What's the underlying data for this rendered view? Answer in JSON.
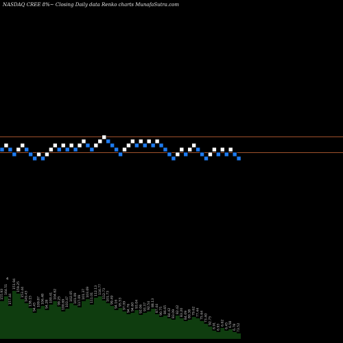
{
  "header": {
    "title": "NASDAQ CREE 8%~  Closing Daily data  Renko  charts MunafaSutra.com"
  },
  "chart_data": {
    "type": "renko",
    "colors": {
      "background": "#000000",
      "up_brick": "#ffffff",
      "down_brick": "#1e7bf0",
      "reference_line": "#a0522d",
      "volume_fill": "#0f3d0f",
      "volume_label": "#c8c8c8"
    },
    "reference_lines": [
      199.5,
      222.5
    ],
    "bricks": [
      {
        "dir": "down",
        "y": 218
      },
      {
        "dir": "up",
        "y": 212
      },
      {
        "dir": "down",
        "y": 218
      },
      {
        "dir": "down",
        "y": 225
      },
      {
        "dir": "up",
        "y": 218
      },
      {
        "dir": "up",
        "y": 212
      },
      {
        "dir": "down",
        "y": 218
      },
      {
        "dir": "down",
        "y": 225
      },
      {
        "dir": "down",
        "y": 231
      },
      {
        "dir": "up",
        "y": 225
      },
      {
        "dir": "down",
        "y": 231
      },
      {
        "dir": "up",
        "y": 225
      },
      {
        "dir": "up",
        "y": 218
      },
      {
        "dir": "up",
        "y": 212
      },
      {
        "dir": "down",
        "y": 218
      },
      {
        "dir": "up",
        "y": 212
      },
      {
        "dir": "down",
        "y": 218
      },
      {
        "dir": "up",
        "y": 212
      },
      {
        "dir": "down",
        "y": 218
      },
      {
        "dir": "up",
        "y": 212
      },
      {
        "dir": "up",
        "y": 206
      },
      {
        "dir": "down",
        "y": 212
      },
      {
        "dir": "down",
        "y": 218
      },
      {
        "dir": "up",
        "y": 212
      },
      {
        "dir": "up",
        "y": 206
      },
      {
        "dir": "up",
        "y": 200
      },
      {
        "dir": "down",
        "y": 206
      },
      {
        "dir": "down",
        "y": 212
      },
      {
        "dir": "down",
        "y": 218
      },
      {
        "dir": "down",
        "y": 225
      },
      {
        "dir": "up",
        "y": 218
      },
      {
        "dir": "up",
        "y": 212
      },
      {
        "dir": "up",
        "y": 206
      },
      {
        "dir": "down",
        "y": 212
      },
      {
        "dir": "up",
        "y": 206
      },
      {
        "dir": "down",
        "y": 212
      },
      {
        "dir": "up",
        "y": 206
      },
      {
        "dir": "down",
        "y": 212
      },
      {
        "dir": "up",
        "y": 206
      },
      {
        "dir": "down",
        "y": 212
      },
      {
        "dir": "down",
        "y": 218
      },
      {
        "dir": "down",
        "y": 225
      },
      {
        "dir": "down",
        "y": 231
      },
      {
        "dir": "up",
        "y": 225
      },
      {
        "dir": "up",
        "y": 218
      },
      {
        "dir": "down",
        "y": 225
      },
      {
        "dir": "up",
        "y": 218
      },
      {
        "dir": "up",
        "y": 212
      },
      {
        "dir": "down",
        "y": 218
      },
      {
        "dir": "down",
        "y": 225
      },
      {
        "dir": "down",
        "y": 231
      },
      {
        "dir": "up",
        "y": 225
      },
      {
        "dir": "up",
        "y": 218
      },
      {
        "dir": "down",
        "y": 225
      },
      {
        "dir": "up",
        "y": 218
      },
      {
        "dir": "down",
        "y": 225
      },
      {
        "dir": "up",
        "y": 218
      },
      {
        "dir": "down",
        "y": 225
      },
      {
        "dir": "down",
        "y": 231
      }
    ],
    "volume": {
      "heights": [
        55,
        62,
        48,
        70,
        66,
        58,
        52,
        45,
        38,
        44,
        48,
        42,
        50,
        55,
        47,
        40,
        44,
        52,
        49,
        46,
        55,
        58,
        50,
        60,
        62,
        56,
        52,
        48,
        42,
        45,
        40,
        36,
        38,
        42,
        35,
        38,
        40,
        44,
        36,
        32,
        34,
        30,
        28,
        34,
        30,
        26,
        28,
        32,
        30,
        26,
        22,
        18,
        12,
        10,
        16,
        12,
        14,
        10,
        8
      ],
      "labels": [
        "155.93",
        "164.51",
        "157.44",
        "151.94",
        "159.25",
        "153.44",
        "149.43",
        "138.15",
        "94.45",
        "109.87",
        "106.48",
        "94.28",
        "100.41",
        "104.62",
        "99.25",
        "100.69",
        "103.47",
        "102.05",
        "101.09",
        "117.09",
        "101.37",
        "103.69",
        "111.01",
        "112.13",
        "116.77",
        "112.73",
        "101.73",
        "99.49",
        "94.16",
        "95.53",
        "97.09",
        "94.76",
        "94.60",
        "93.04",
        "92.06",
        "93.37",
        "92.54",
        "88.13",
        "87.44",
        "90.75",
        "86.65",
        "84.42",
        "83.09",
        "82.42",
        "83.20",
        "84.09",
        "80.38",
        "79.62",
        "77.44",
        "75.64",
        "73.40",
        "92.75",
        "6.91",
        "6.93",
        "6.62",
        "6.45",
        "6.58",
        "6.78",
        "73.52"
      ],
      "marker": "4"
    }
  }
}
